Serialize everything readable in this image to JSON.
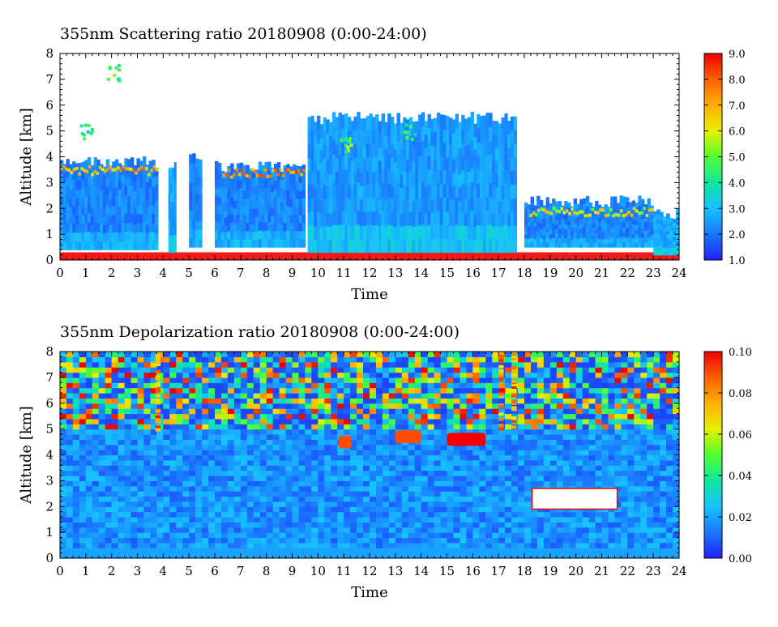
{
  "chart_data": [
    {
      "type": "heatmap",
      "title": "355nm Scattering ratio  20180908 (0:00-24:00)",
      "xlabel": "Time",
      "ylabel": "Altitude [km]",
      "xlim": [
        0,
        24
      ],
      "ylim": [
        0,
        8
      ],
      "xticks": [
        "0",
        "1",
        "2",
        "3",
        "4",
        "5",
        "6",
        "7",
        "8",
        "9",
        "10",
        "11",
        "12",
        "13",
        "14",
        "15",
        "16",
        "17",
        "18",
        "19",
        "20",
        "21",
        "22",
        "23",
        "24"
      ],
      "yticks": [
        "0",
        "1",
        "2",
        "3",
        "4",
        "5",
        "6",
        "7",
        "8"
      ],
      "colorbar": {
        "min": 1.0,
        "max": 9.0,
        "ticks": [
          "1.0",
          "2.0",
          "3.0",
          "4.0",
          "5.0",
          "6.0",
          "7.0",
          "8.0",
          "9.0"
        ]
      },
      "colormap": [
        "#2020ff",
        "#1a78ff",
        "#18c0ff",
        "#10e8a0",
        "#50ff30",
        "#e8f000",
        "#ffb000",
        "#ff6000",
        "#f00000"
      ],
      "features": {
        "surface_layer": {
          "top_km": 0.3,
          "value": 9.0
        },
        "boundary_layer_clouds": [
          {
            "x": [
              0,
              3.8
            ],
            "y": [
              0.4,
              3.8
            ],
            "value": 2.0
          },
          {
            "x": [
              4.2,
              4.5
            ],
            "y": [
              0.3,
              3.8
            ],
            "value": 2.5
          },
          {
            "x": [
              5.0,
              5.5
            ],
            "y": [
              0.5,
              3.9
            ],
            "value": 2.0
          },
          {
            "x": [
              6.0,
              9.5
            ],
            "y": [
              0.5,
              3.6
            ],
            "value": 2.0
          },
          {
            "x": [
              9.6,
              17.7
            ],
            "y": [
              0.3,
              5.5
            ],
            "value": 2.3
          },
          {
            "x": [
              18.0,
              23.0
            ],
            "y": [
              0.5,
              2.3
            ],
            "value": 2.0
          },
          {
            "x": [
              23.0,
              24.0
            ],
            "y": [
              0.2,
              1.8
            ],
            "value": 2.5
          }
        ],
        "cloud_top_highlights": [
          {
            "x": [
              0,
              3.8
            ],
            "y": 3.4,
            "value": 7.0
          },
          {
            "x": [
              6.3,
              9.5
            ],
            "y": 3.3,
            "value": 7.5
          },
          {
            "x": [
              18.2,
              23.0
            ],
            "y": 1.8,
            "value": 6.0
          }
        ],
        "upper_cloud_fragments": [
          {
            "x": 1.0,
            "y": 5.0,
            "value": 4.0
          },
          {
            "x": 2.0,
            "y": 7.3,
            "value": 5.0
          },
          {
            "x": 11.0,
            "y": 4.5,
            "value": 5.0
          },
          {
            "x": 13.5,
            "y": 5.0,
            "value": 4.0
          }
        ]
      }
    },
    {
      "type": "heatmap",
      "title": "355nm Depolarization ratio  20180908 (0:00-24:00)",
      "xlabel": "Time",
      "ylabel": "Altitude [km]",
      "xlim": [
        0,
        24
      ],
      "ylim": [
        0,
        8
      ],
      "xticks": [
        "0",
        "1",
        "2",
        "3",
        "4",
        "5",
        "6",
        "7",
        "8",
        "9",
        "10",
        "11",
        "12",
        "13",
        "14",
        "15",
        "16",
        "17",
        "18",
        "19",
        "20",
        "21",
        "22",
        "23",
        "24"
      ],
      "yticks": [
        "0",
        "1",
        "2",
        "3",
        "4",
        "5",
        "6",
        "7",
        "8"
      ],
      "colorbar": {
        "min": 0.0,
        "max": 0.1,
        "ticks": [
          "0.00",
          "0.02",
          "0.04",
          "0.06",
          "0.08",
          "0.10"
        ]
      },
      "colormap": [
        "#2020ff",
        "#1a78ff",
        "#18c0ff",
        "#10e8a0",
        "#50ff30",
        "#e8f000",
        "#ffb000",
        "#ff6000",
        "#f00000"
      ],
      "features": {
        "noisy_upper_region": {
          "y": [
            5.0,
            8.0
          ],
          "value_range": [
            0.0,
            0.1
          ]
        },
        "elevated_layers": [
          {
            "x": [
              10.8,
              11.3
            ],
            "y": 4.5,
            "value": 0.09
          },
          {
            "x": [
              13.0,
              14.0
            ],
            "y": 4.7,
            "value": 0.09
          },
          {
            "x": [
              15.0,
              16.5
            ],
            "y": 4.6,
            "value": 0.1
          }
        ],
        "high_depol_columns": [
          {
            "x": 3.8,
            "value": 0.1
          },
          {
            "x": 17.1,
            "value": 0.1
          },
          {
            "x": 17.6,
            "value": 0.1
          }
        ],
        "saturated_patch": {
          "x": [
            18.3,
            21.6
          ],
          "y": [
            1.9,
            2.7
          ],
          "value": "above 0.10"
        }
      }
    }
  ]
}
